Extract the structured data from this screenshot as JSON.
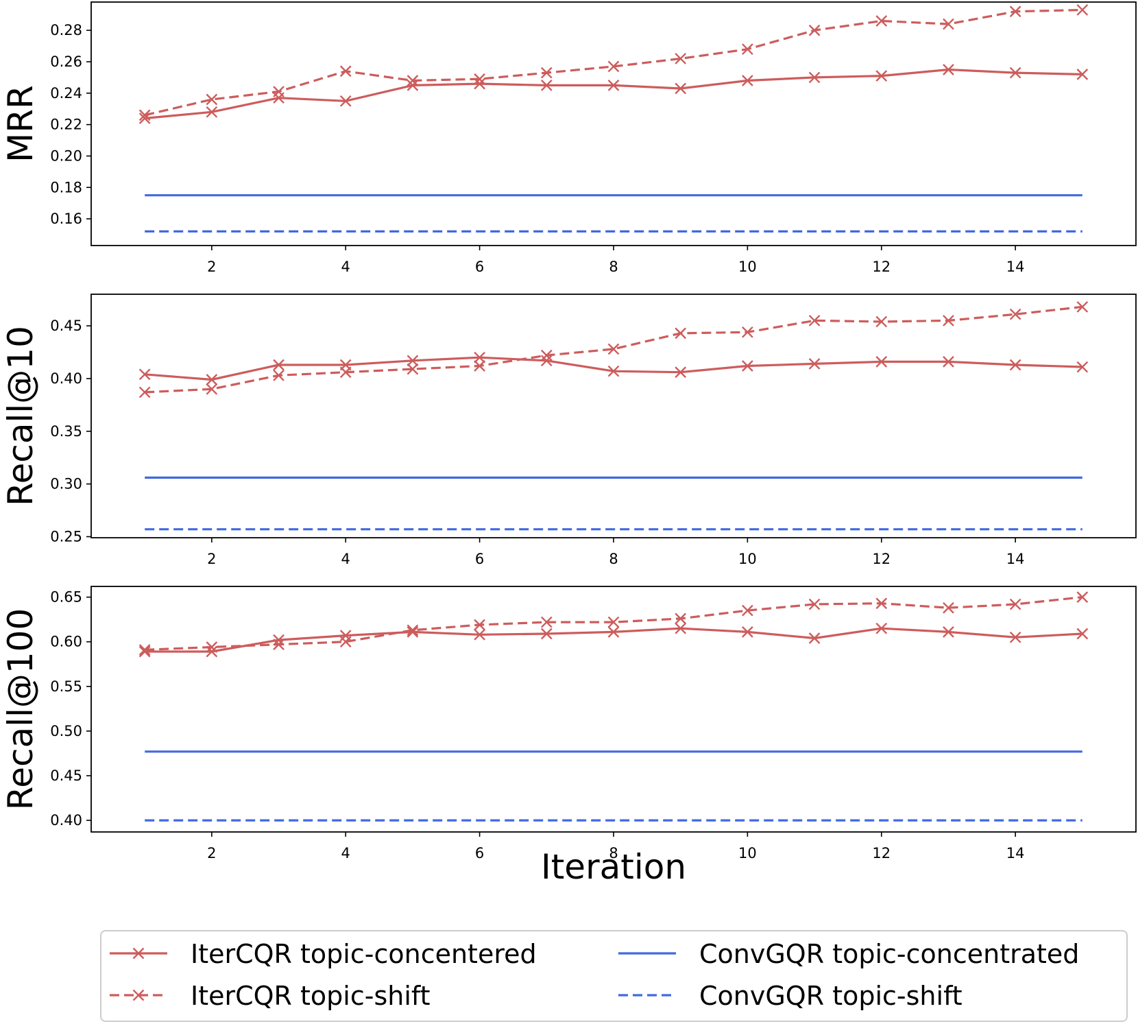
{
  "chart_data": [
    {
      "type": "line",
      "ylabel": "MRR",
      "xlabel": "",
      "x": [
        1,
        2,
        3,
        4,
        5,
        6,
        7,
        8,
        9,
        10,
        11,
        12,
        13,
        14,
        15
      ],
      "xlim": [
        0.2,
        15.8
      ],
      "ylim": [
        0.143,
        0.298
      ],
      "xticks": [
        "2",
        "4",
        "6",
        "8",
        "10",
        "12",
        "14"
      ],
      "yticks": [
        "0.16",
        "0.18",
        "0.20",
        "0.22",
        "0.24",
        "0.26",
        "0.28"
      ],
      "series": [
        {
          "name": "IterCQR topic-concentered",
          "style": "solid",
          "marker": "x",
          "color": "#CD5C5C",
          "values": [
            0.224,
            0.228,
            0.237,
            0.235,
            0.245,
            0.246,
            0.245,
            0.245,
            0.243,
            0.248,
            0.25,
            0.251,
            0.255,
            0.253,
            0.252
          ]
        },
        {
          "name": "IterCQR topic-shift",
          "style": "dashed",
          "marker": "x",
          "color": "#CD5C5C",
          "values": [
            0.226,
            0.236,
            0.241,
            0.254,
            0.248,
            0.249,
            0.253,
            0.257,
            0.262,
            0.268,
            0.28,
            0.286,
            0.284,
            0.292,
            0.293
          ]
        },
        {
          "name": "ConvGQR  topic-concentrated",
          "style": "solid",
          "marker": "none",
          "color": "#4169E1",
          "values": [
            0.175,
            0.175,
            0.175,
            0.175,
            0.175,
            0.175,
            0.175,
            0.175,
            0.175,
            0.175,
            0.175,
            0.175,
            0.175,
            0.175,
            0.175
          ]
        },
        {
          "name": "ConvGQR topic-shift",
          "style": "dashed",
          "marker": "none",
          "color": "#4169E1",
          "values": [
            0.152,
            0.152,
            0.152,
            0.152,
            0.152,
            0.152,
            0.152,
            0.152,
            0.152,
            0.152,
            0.152,
            0.152,
            0.152,
            0.152,
            0.152
          ]
        }
      ]
    },
    {
      "type": "line",
      "ylabel": "Recall@10",
      "xlabel": "",
      "x": [
        1,
        2,
        3,
        4,
        5,
        6,
        7,
        8,
        9,
        10,
        11,
        12,
        13,
        14,
        15
      ],
      "xlim": [
        0.2,
        15.8
      ],
      "ylim": [
        0.249,
        0.48
      ],
      "xticks": [
        "2",
        "4",
        "6",
        "8",
        "10",
        "12",
        "14"
      ],
      "yticks": [
        "0.25",
        "0.30",
        "0.35",
        "0.40",
        "0.45"
      ],
      "series": [
        {
          "name": "IterCQR topic-concentered",
          "style": "solid",
          "marker": "x",
          "color": "#CD5C5C",
          "values": [
            0.404,
            0.399,
            0.413,
            0.413,
            0.417,
            0.42,
            0.417,
            0.407,
            0.406,
            0.412,
            0.414,
            0.416,
            0.416,
            0.413,
            0.411
          ]
        },
        {
          "name": "IterCQR topic-shift",
          "style": "dashed",
          "marker": "x",
          "color": "#CD5C5C",
          "values": [
            0.387,
            0.39,
            0.403,
            0.406,
            0.409,
            0.412,
            0.422,
            0.428,
            0.443,
            0.444,
            0.455,
            0.454,
            0.455,
            0.461,
            0.468
          ]
        },
        {
          "name": "ConvGQR  topic-concentrated",
          "style": "solid",
          "marker": "none",
          "color": "#4169E1",
          "values": [
            0.306,
            0.306,
            0.306,
            0.306,
            0.306,
            0.306,
            0.306,
            0.306,
            0.306,
            0.306,
            0.306,
            0.306,
            0.306,
            0.306,
            0.306
          ]
        },
        {
          "name": "ConvGQR topic-shift",
          "style": "dashed",
          "marker": "none",
          "color": "#4169E1",
          "values": [
            0.257,
            0.257,
            0.257,
            0.257,
            0.257,
            0.257,
            0.257,
            0.257,
            0.257,
            0.257,
            0.257,
            0.257,
            0.257,
            0.257,
            0.257
          ]
        }
      ]
    },
    {
      "type": "line",
      "ylabel": "Recall@100",
      "xlabel": "Iteration",
      "x": [
        1,
        2,
        3,
        4,
        5,
        6,
        7,
        8,
        9,
        10,
        11,
        12,
        13,
        14,
        15
      ],
      "xlim": [
        0.2,
        15.8
      ],
      "ylim": [
        0.387,
        0.662
      ],
      "xticks": [
        "2",
        "4",
        "6",
        "8",
        "10",
        "12",
        "14"
      ],
      "yticks": [
        "0.40",
        "0.45",
        "0.50",
        "0.55",
        "0.60",
        "0.65"
      ],
      "series": [
        {
          "name": "IterCQR topic-concentered",
          "style": "solid",
          "marker": "x",
          "color": "#CD5C5C",
          "values": [
            0.589,
            0.589,
            0.602,
            0.607,
            0.611,
            0.608,
            0.609,
            0.611,
            0.615,
            0.611,
            0.604,
            0.615,
            0.611,
            0.605,
            0.609
          ]
        },
        {
          "name": "IterCQR topic-shift",
          "style": "dashed",
          "marker": "x",
          "color": "#CD5C5C",
          "values": [
            0.591,
            0.594,
            0.597,
            0.6,
            0.613,
            0.619,
            0.622,
            0.622,
            0.626,
            0.635,
            0.642,
            0.643,
            0.638,
            0.642,
            0.65
          ]
        },
        {
          "name": "ConvGQR  topic-concentrated",
          "style": "solid",
          "marker": "none",
          "color": "#4169E1",
          "values": [
            0.477,
            0.477,
            0.477,
            0.477,
            0.477,
            0.477,
            0.477,
            0.477,
            0.477,
            0.477,
            0.477,
            0.477,
            0.477,
            0.477,
            0.477
          ]
        },
        {
          "name": "ConvGQR topic-shift",
          "style": "dashed",
          "marker": "none",
          "color": "#4169E1",
          "values": [
            0.4,
            0.4,
            0.4,
            0.4,
            0.4,
            0.4,
            0.4,
            0.4,
            0.4,
            0.4,
            0.4,
            0.4,
            0.4,
            0.4,
            0.4
          ]
        }
      ]
    }
  ],
  "legend": {
    "placement": "bottom",
    "entries": [
      {
        "label": "IterCQR topic-concentered",
        "style": "solid",
        "marker": "x",
        "color": "#CD5C5C"
      },
      {
        "label": "ConvGQR  topic-concentrated",
        "style": "solid",
        "marker": "none",
        "color": "#4169E1"
      },
      {
        "label": "IterCQR topic-shift",
        "style": "dashed",
        "marker": "x",
        "color": "#CD5C5C"
      },
      {
        "label": "ConvGQR topic-shift",
        "style": "dashed",
        "marker": "none",
        "color": "#4169E1"
      }
    ]
  }
}
